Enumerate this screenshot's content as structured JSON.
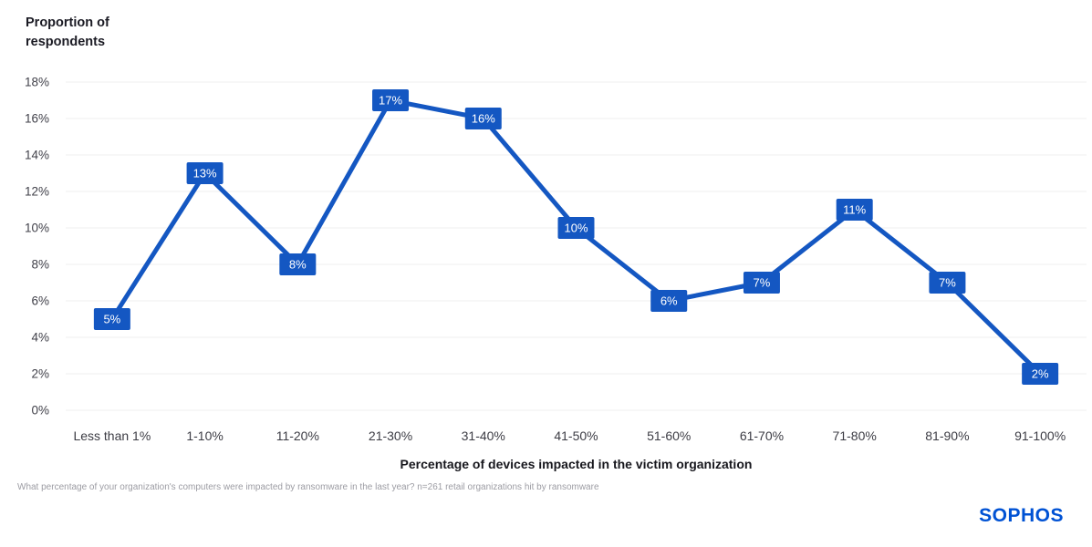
{
  "chart_data": {
    "type": "line",
    "title": "Proportion of\nrespondents",
    "categories": [
      "Less than 1%",
      "1-10%",
      "11-20%",
      "21-30%",
      "31-40%",
      "41-50%",
      "51-60%",
      "61-70%",
      "71-80%",
      "81-90%",
      "91-100%"
    ],
    "values": [
      5,
      13,
      8,
      17,
      16,
      10,
      6,
      7,
      11,
      7,
      2
    ],
    "labels": [
      "5%",
      "13%",
      "8%",
      "17%",
      "16%",
      "10%",
      "6%",
      "7%",
      "11%",
      "7%",
      "2%"
    ],
    "xlabel": "Percentage of devices impacted in the victim organization",
    "ylabel": "Proportion of respondents",
    "ylim": [
      0,
      18
    ],
    "ytick_step": 2,
    "ytick_labels": [
      "0%",
      "2%",
      "4%",
      "6%",
      "8%",
      "10%",
      "12%",
      "14%",
      "16%",
      "18%"
    ],
    "grid": true,
    "legend": "none",
    "line_color": "#1457c2",
    "label_bg_color": "#1457c2",
    "label_text_color": "#ffffff",
    "grid_color": "#efefef"
  },
  "footnote": "What percentage of your organization's computers were impacted by ransomware in the last year? n=261 retail organizations hit by ransomware",
  "branding": {
    "logo_text": "SOPHOS",
    "logo_color": "#0052d4"
  }
}
